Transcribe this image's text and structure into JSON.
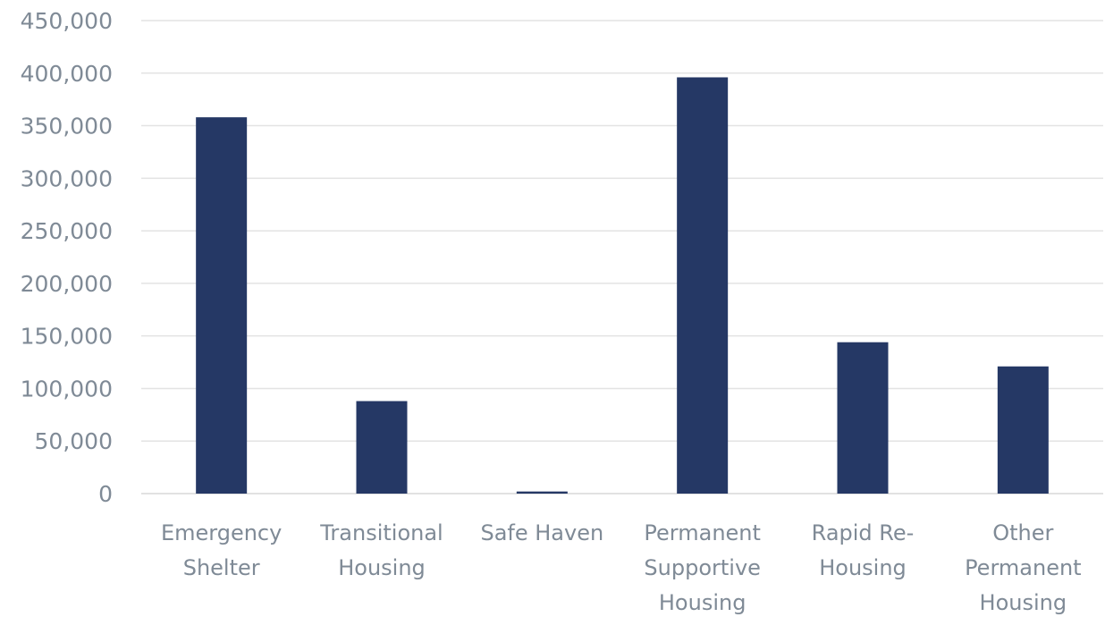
{
  "chart_data": {
    "type": "bar",
    "title": "",
    "xlabel": "",
    "ylabel": "",
    "ylim": [
      0,
      450000
    ],
    "yticks": [
      0,
      50000,
      100000,
      150000,
      200000,
      250000,
      300000,
      350000,
      400000,
      450000
    ],
    "ytick_labels": [
      "0",
      "50,000",
      "100,000",
      "150,000",
      "200,000",
      "250,000",
      "300,000",
      "350,000",
      "400,000",
      "450,000"
    ],
    "grid": true,
    "legend": "none",
    "bar_color": "#253865",
    "categories": [
      [
        "Emergency",
        "Shelter"
      ],
      [
        "Transitional",
        "Housing"
      ],
      [
        "Safe Haven"
      ],
      [
        "Permanent",
        "Supportive",
        "Housing"
      ],
      [
        "Rapid Re-",
        "Housing"
      ],
      [
        "Other",
        "Permanent",
        "Housing"
      ]
    ],
    "values": [
      358000,
      88000,
      2000,
      396000,
      144000,
      121000
    ]
  }
}
